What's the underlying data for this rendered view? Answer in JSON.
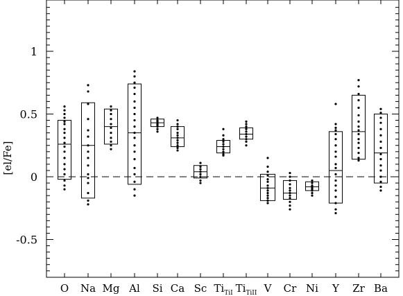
{
  "chart_data": {
    "type": "scatter",
    "title": "",
    "xlabel": "",
    "ylabel": "[el/Fe]",
    "ylim": [
      -0.8,
      1.35
    ],
    "yticks": [
      {
        "value": -0.5,
        "label": "-0.5"
      },
      {
        "value": 0,
        "label": "0"
      },
      {
        "value": 0.5,
        "label": "0.5"
      },
      {
        "value": 1,
        "label": "1"
      }
    ],
    "reference_line": {
      "y": 0,
      "style": "dashed"
    },
    "categories": [
      {
        "label": "O",
        "sub": ""
      },
      {
        "label": "Na",
        "sub": ""
      },
      {
        "label": "Mg",
        "sub": ""
      },
      {
        "label": "Al",
        "sub": ""
      },
      {
        "label": "Si",
        "sub": ""
      },
      {
        "label": "Ca",
        "sub": ""
      },
      {
        "label": "Sc",
        "sub": ""
      },
      {
        "label": "Ti",
        "sub": "TiI"
      },
      {
        "label": "Ti",
        "sub": "TiII"
      },
      {
        "label": "V",
        "sub": ""
      },
      {
        "label": "Cr",
        "sub": ""
      },
      {
        "label": "Ni",
        "sub": ""
      },
      {
        "label": "Y",
        "sub": ""
      },
      {
        "label": "Zr",
        "sub": ""
      },
      {
        "label": "Ba",
        "sub": ""
      }
    ],
    "boxes": [
      {
        "element": "O",
        "low": -0.02,
        "median": 0.26,
        "high": 0.45
      },
      {
        "element": "Na",
        "low": -0.17,
        "median": 0.25,
        "high": 0.59
      },
      {
        "element": "Mg",
        "low": 0.26,
        "median": 0.4,
        "high": 0.54
      },
      {
        "element": "Al",
        "low": -0.06,
        "median": 0.35,
        "high": 0.74
      },
      {
        "element": "Si",
        "low": 0.4,
        "median": 0.43,
        "high": 0.46
      },
      {
        "element": "Ca",
        "low": 0.24,
        "median": 0.31,
        "high": 0.4
      },
      {
        "element": "Sc",
        "low": -0.01,
        "median": 0.04,
        "high": 0.09
      },
      {
        "element": "TiI",
        "low": 0.19,
        "median": 0.24,
        "high": 0.29
      },
      {
        "element": "TiII",
        "low": 0.3,
        "median": 0.34,
        "high": 0.39
      },
      {
        "element": "V",
        "low": -0.19,
        "median": -0.09,
        "high": 0.02
      },
      {
        "element": "Cr",
        "low": -0.18,
        "median": -0.13,
        "high": -0.03
      },
      {
        "element": "Ni",
        "low": -0.11,
        "median": -0.08,
        "high": -0.04
      },
      {
        "element": "Y",
        "low": -0.21,
        "median": 0.05,
        "high": 0.36
      },
      {
        "element": "Zr",
        "low": 0.14,
        "median": 0.36,
        "high": 0.65
      },
      {
        "element": "Ba",
        "low": -0.05,
        "median": 0.19,
        "high": 0.5
      }
    ],
    "points": [
      [
        0.56,
        0.53,
        0.5,
        0.47,
        0.44,
        0.42,
        0.38,
        0.35,
        0.31,
        0.27,
        0.24,
        0.2,
        0.15,
        0.1,
        0.06,
        0.02,
        -0.03,
        -0.07,
        -0.1
      ],
      [
        0.73,
        0.68,
        0.58,
        0.46,
        0.37,
        0.32,
        0.25,
        0.2,
        0.15,
        0.09,
        0.02,
        -0.01,
        -0.05,
        -0.13,
        -0.19,
        -0.22
      ],
      [
        0.56,
        0.53,
        0.5,
        0.46,
        0.42,
        0.39,
        0.35,
        0.31,
        0.28,
        0.25,
        0.22
      ],
      [
        0.84,
        0.8,
        0.75,
        0.71,
        0.66,
        0.6,
        0.55,
        0.5,
        0.45,
        0.4,
        0.35,
        0.31,
        0.25,
        0.2,
        0.14,
        0.07,
        0.02,
        -0.04,
        -0.1,
        -0.15
      ],
      [
        0.47,
        0.45,
        0.44,
        0.43,
        0.42,
        0.41,
        0.4,
        0.38,
        0.36
      ],
      [
        0.45,
        0.42,
        0.4,
        0.38,
        0.35,
        0.33,
        0.31,
        0.29,
        0.27,
        0.25,
        0.23,
        0.21
      ],
      [
        0.11,
        0.08,
        0.06,
        0.04,
        0.02,
        0.0,
        -0.03,
        -0.05
      ],
      [
        0.38,
        0.33,
        0.3,
        0.28,
        0.26,
        0.24,
        0.22,
        0.2,
        0.18,
        0.17
      ],
      [
        0.44,
        0.42,
        0.4,
        0.38,
        0.36,
        0.34,
        0.32,
        0.3,
        0.28,
        0.25
      ],
      [
        0.15,
        0.08,
        0.04,
        0.01,
        -0.02,
        -0.04,
        -0.07,
        -0.09,
        -0.11,
        -0.13,
        -0.15,
        -0.17,
        -0.19,
        -0.21
      ],
      [
        0.03,
        0.0,
        -0.03,
        -0.06,
        -0.09,
        -0.11,
        -0.13,
        -0.15,
        -0.17,
        -0.2,
        -0.23,
        -0.26
      ],
      [
        -0.03,
        -0.05,
        -0.07,
        -0.08,
        -0.09,
        -0.1,
        -0.11,
        -0.13,
        -0.15
      ],
      [
        0.58,
        0.42,
        0.39,
        0.37,
        0.34,
        0.3,
        0.25,
        0.2,
        0.16,
        0.1,
        0.07,
        0.02,
        -0.03,
        -0.07,
        -0.11,
        -0.16,
        -0.21,
        -0.26,
        -0.29
      ],
      [
        0.77,
        0.72,
        0.66,
        0.61,
        0.55,
        0.49,
        0.44,
        0.4,
        0.37,
        0.34,
        0.3,
        0.27,
        0.23,
        0.19,
        0.15,
        0.13
      ],
      [
        0.54,
        0.51,
        0.47,
        0.43,
        0.38,
        0.33,
        0.28,
        0.23,
        0.18,
        0.14,
        0.09,
        0.05,
        0.0,
        -0.04,
        -0.08,
        -0.11
      ]
    ]
  }
}
